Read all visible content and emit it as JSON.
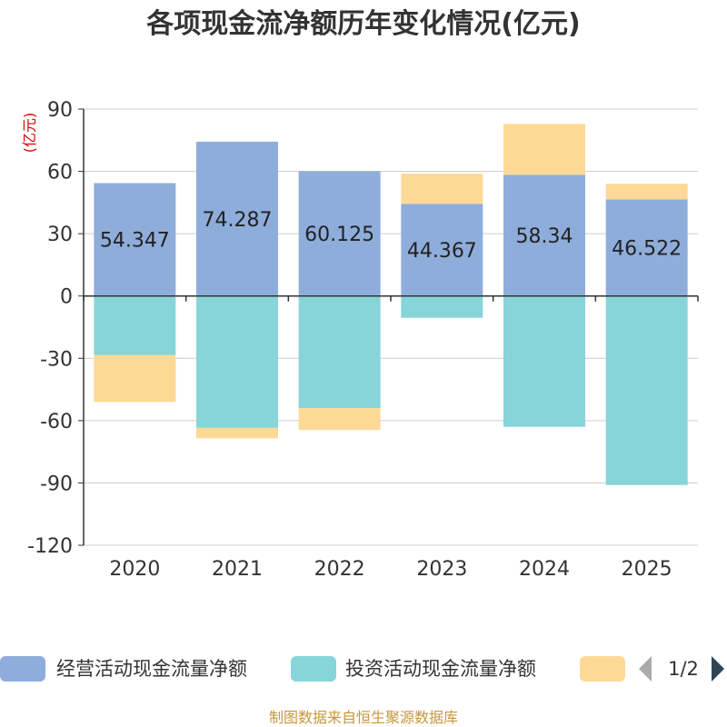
{
  "chart_data": {
    "type": "bar",
    "stacked": true,
    "title": "各项现金流净额历年变化情况(亿元)",
    "ylabel": "(亿元)",
    "xlabel": "",
    "categories": [
      "2020",
      "2021",
      "2022",
      "2023",
      "2024",
      "2025"
    ],
    "ylim": [
      -120,
      90
    ],
    "yticks": [
      90,
      60,
      30,
      0,
      -30,
      -60,
      -90,
      -120
    ],
    "grid": true,
    "series": [
      {
        "name": "经营活动现金流量净额",
        "color": "#8eaddb",
        "values": [
          54.347,
          74.287,
          60.125,
          44.367,
          58.34,
          46.522
        ],
        "labels": [
          "54.347",
          "74.287",
          "60.125",
          "44.367",
          "58.34",
          "46.522"
        ]
      },
      {
        "name": "投资活动现金流量净额",
        "color": "#87d5d8",
        "values": [
          -28.5,
          -63.5,
          -54.0,
          -10.5,
          -63.0,
          -91.0
        ]
      },
      {
        "name": "",
        "color": "#fdd996",
        "values": [
          -22.5,
          -5.0,
          -10.5,
          14.5,
          24.5,
          7.5
        ]
      }
    ],
    "legend": {
      "position": "bottom",
      "page": "1/2"
    },
    "source": "制图数据来自恒生聚源数据库"
  }
}
